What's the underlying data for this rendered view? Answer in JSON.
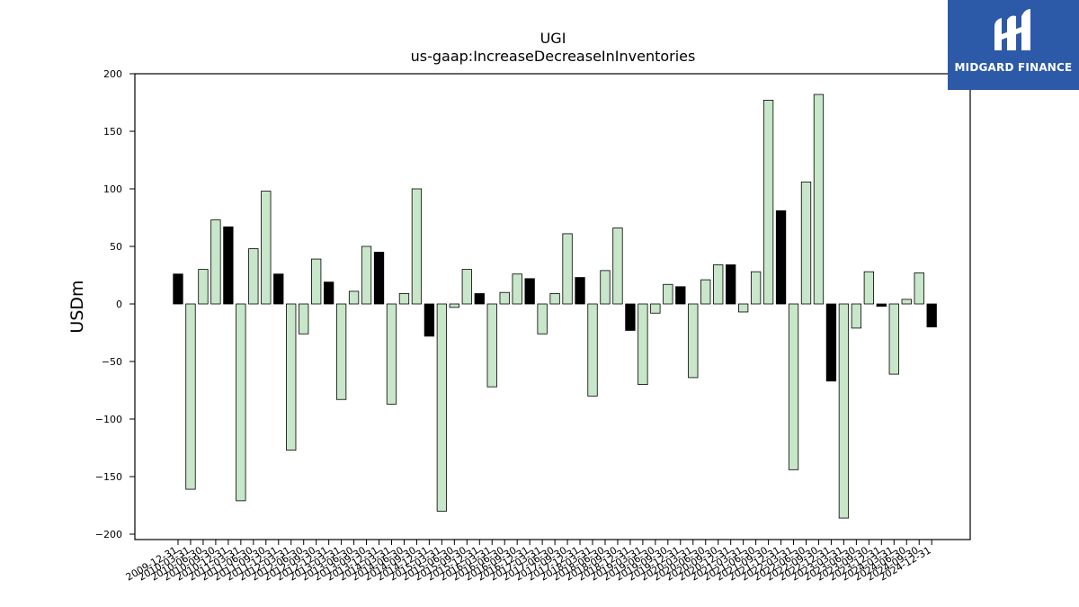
{
  "chart_data": {
    "type": "bar",
    "title": "UGI",
    "subtitle": "us-gaap:IncreaseDecreaseInInventories",
    "ylabel": "USDm",
    "xlabel": "",
    "ylim": [
      -205,
      200
    ],
    "yticks": [
      -200,
      -150,
      -100,
      -50,
      0,
      50,
      100,
      150,
      200
    ],
    "grid": false,
    "legend": "none",
    "colors": {
      "quarterly": "#c8e6c9",
      "annual": "#000000",
      "edge": "#000000"
    },
    "categories": [
      "2009-12-31",
      "2010-03-31",
      "2010-06-30",
      "2010-09-30",
      "2010-12-31",
      "2011-03-31",
      "2011-06-30",
      "2011-09-30",
      "2011-12-31",
      "2012-03-31",
      "2012-06-30",
      "2012-09-30",
      "2012-12-31",
      "2013-03-31",
      "2013-06-30",
      "2013-09-30",
      "2013-12-31",
      "2014-03-31",
      "2014-06-30",
      "2014-09-30",
      "2014-12-31",
      "2015-03-31",
      "2015-06-30",
      "2015-09-30",
      "2015-12-31",
      "2016-03-31",
      "2016-06-30",
      "2016-09-30",
      "2016-12-31",
      "2017-03-31",
      "2017-06-30",
      "2017-09-30",
      "2017-12-31",
      "2018-03-31",
      "2018-06-30",
      "2018-09-30",
      "2018-12-31",
      "2019-03-31",
      "2019-06-30",
      "2019-09-30",
      "2019-12-31",
      "2020-03-31",
      "2020-06-30",
      "2020-09-30",
      "2020-12-31",
      "2021-03-31",
      "2021-06-30",
      "2021-09-30",
      "2021-12-31",
      "2022-03-31",
      "2022-06-30",
      "2022-09-30",
      "2022-12-31",
      "2023-03-31",
      "2023-06-30",
      "2023-09-30",
      "2023-12-31",
      "2024-03-31",
      "2024-06-30",
      "2024-09-30",
      "2024-12-31"
    ],
    "values": [
      26,
      -161,
      30,
      73,
      67,
      -171,
      48,
      98,
      26,
      -127,
      -26,
      39,
      19,
      -83,
      11,
      50,
      45,
      -87,
      9,
      100,
      -28,
      -180,
      -3,
      30,
      9,
      -72,
      10,
      26,
      22,
      -26,
      9,
      61,
      23,
      -80,
      29,
      66,
      -23,
      -70,
      -8,
      17,
      15,
      -64,
      21,
      34,
      34,
      -7,
      28,
      177,
      81,
      -144,
      106,
      182,
      -67,
      -186,
      -21,
      28,
      -2,
      -61,
      4,
      27,
      -20
    ],
    "annual_flags": [
      1,
      0,
      0,
      0,
      1,
      0,
      0,
      0,
      1,
      0,
      0,
      0,
      1,
      0,
      0,
      0,
      1,
      0,
      0,
      0,
      1,
      0,
      0,
      0,
      1,
      0,
      0,
      0,
      1,
      0,
      0,
      0,
      1,
      0,
      0,
      0,
      1,
      0,
      0,
      0,
      1,
      0,
      0,
      0,
      1,
      0,
      0,
      0,
      1,
      0,
      0,
      0,
      1,
      0,
      0,
      0,
      1,
      0,
      0,
      0,
      1
    ]
  },
  "brand": {
    "name": "MIDGARD FINANCE",
    "color": "#2d5aa8"
  }
}
